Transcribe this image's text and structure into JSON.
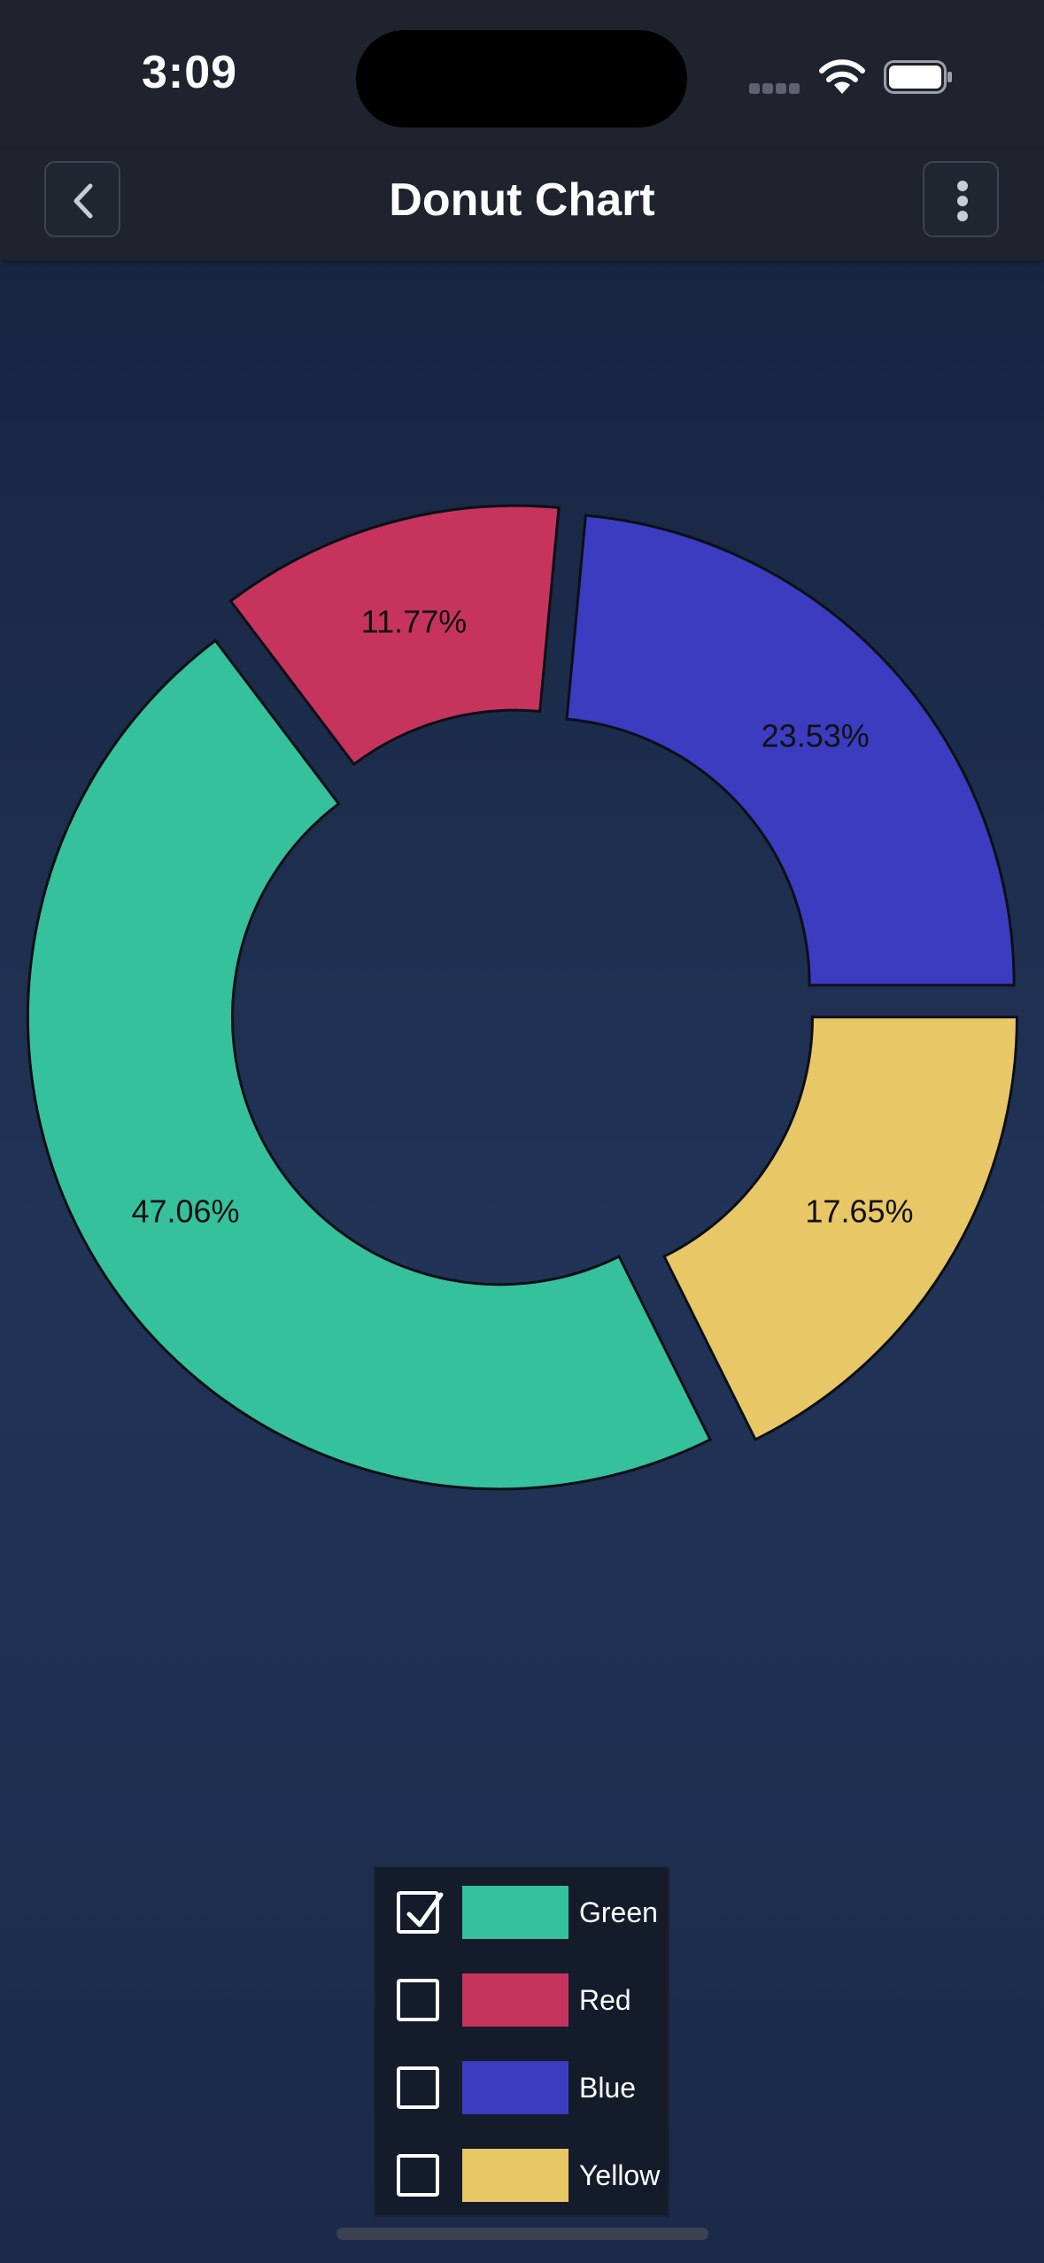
{
  "status_bar": {
    "time": "3:09"
  },
  "nav": {
    "title": "Donut Chart",
    "back_icon": "chevron-left-icon",
    "menu_icon": "more-vertical-icon"
  },
  "chart_data": {
    "type": "pie",
    "variant": "donut",
    "exploded": true,
    "categories": [
      "Yellow",
      "Green",
      "Red",
      "Blue"
    ],
    "values": [
      17.65,
      47.06,
      11.77,
      23.53
    ],
    "labels": [
      "17.65%",
      "47.06%",
      "11.77%",
      "23.53%"
    ],
    "colors": [
      "#e8c767",
      "#35c19b",
      "#c6345d",
      "#3b3cc0"
    ],
    "start_angle_deg": 0,
    "legend_position": "bottom-center"
  },
  "legend": {
    "items": [
      {
        "label": "Green",
        "color": "#35c19b",
        "checked": true
      },
      {
        "label": "Red",
        "color": "#c6345d",
        "checked": false
      },
      {
        "label": "Blue",
        "color": "#3b3cc0",
        "checked": false
      },
      {
        "label": "Yellow",
        "color": "#e8c767",
        "checked": false
      }
    ]
  }
}
